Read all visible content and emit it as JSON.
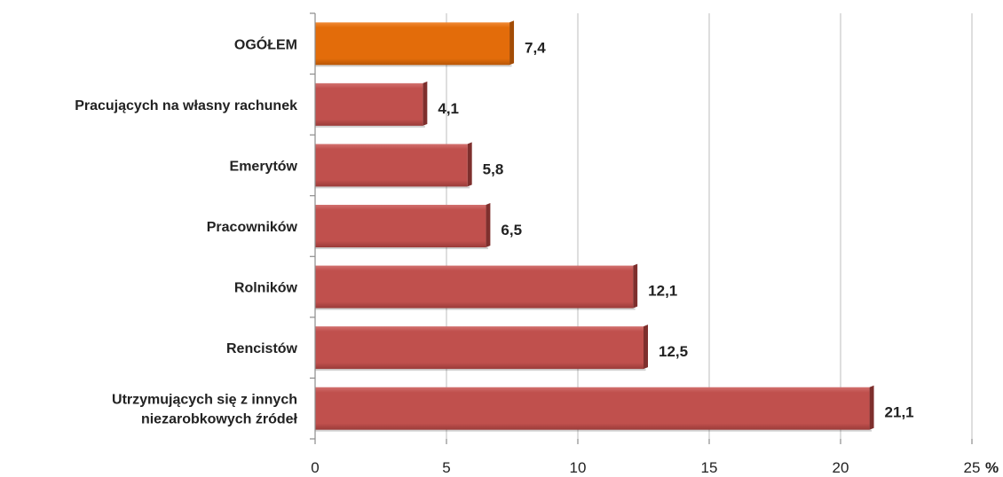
{
  "chart_data": {
    "type": "bar",
    "orientation": "horizontal",
    "categories": [
      "OGÓŁEM",
      "Pracujących na własny rachunek",
      "Emerytów",
      "Pracowników",
      "Rolników",
      "Rencistów",
      "Utrzymujących się z innych niezarobkowych źródeł"
    ],
    "category_lines": [
      [
        "OGÓŁEM"
      ],
      [
        "Pracujących na własny rachunek"
      ],
      [
        "Emerytów"
      ],
      [
        "Pracowników"
      ],
      [
        "Rolników"
      ],
      [
        "Rencistów"
      ],
      [
        "Utrzymujących się z innych",
        "niezarobkowych źródeł"
      ]
    ],
    "values": [
      7.4,
      4.1,
      5.8,
      6.5,
      12.1,
      12.5,
      21.1
    ],
    "value_labels": [
      "7,4",
      "4,1",
      "5,8",
      "6,5",
      "12,1",
      "12,5",
      "21,1"
    ],
    "highlight_index": 0,
    "colors": {
      "highlight": "#E36C0A",
      "highlight_dark": "#A34C06",
      "bar": "#C0504D",
      "bar_dark": "#7E2F2D"
    },
    "xlim": [
      0,
      25
    ],
    "xticks": [
      0,
      5,
      10,
      15,
      20,
      25
    ],
    "xtick_labels": [
      "0",
      "5",
      "10",
      "15",
      "20",
      "25"
    ],
    "x_unit": "%",
    "grid": true,
    "title": "",
    "xlabel": "",
    "ylabel": ""
  }
}
